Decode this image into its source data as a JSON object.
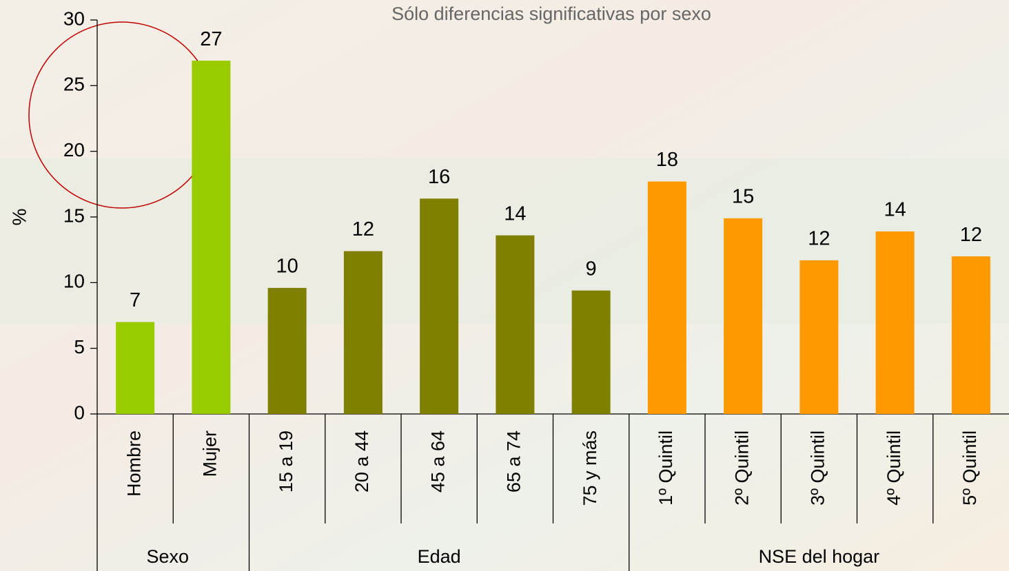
{
  "chart_data": {
    "type": "bar",
    "title": "Sólo diferencias significativas por sexo",
    "y_label": "%",
    "ylim": [
      0,
      30
    ],
    "yticks": [
      0,
      5,
      10,
      15,
      20,
      25,
      30
    ],
    "groups": [
      {
        "name": "Sexo",
        "color": "#99cc00",
        "categories": [
          "Hombre",
          "Mujer"
        ],
        "values": [
          7.0,
          26.9
        ],
        "value_labels": [
          "7",
          "27"
        ]
      },
      {
        "name": "Edad",
        "color": "#808000",
        "categories": [
          "15 a 19",
          "20 a 44",
          "45 a 64",
          "65 a 74",
          "75 y más"
        ],
        "values": [
          9.6,
          12.4,
          16.4,
          13.6,
          9.4
        ],
        "value_labels": [
          "10",
          "12",
          "16",
          "14",
          "9"
        ]
      },
      {
        "name": "NSE del hogar",
        "color": "#ff9900",
        "categories": [
          "1º Quintil",
          "2º Quintil",
          "3º Quintil",
          "4º Quintil",
          "5º Quintil"
        ],
        "values": [
          17.7,
          14.9,
          11.7,
          13.9,
          12.0
        ],
        "value_labels": [
          "18",
          "15",
          "12",
          "14",
          "12"
        ]
      }
    ]
  }
}
